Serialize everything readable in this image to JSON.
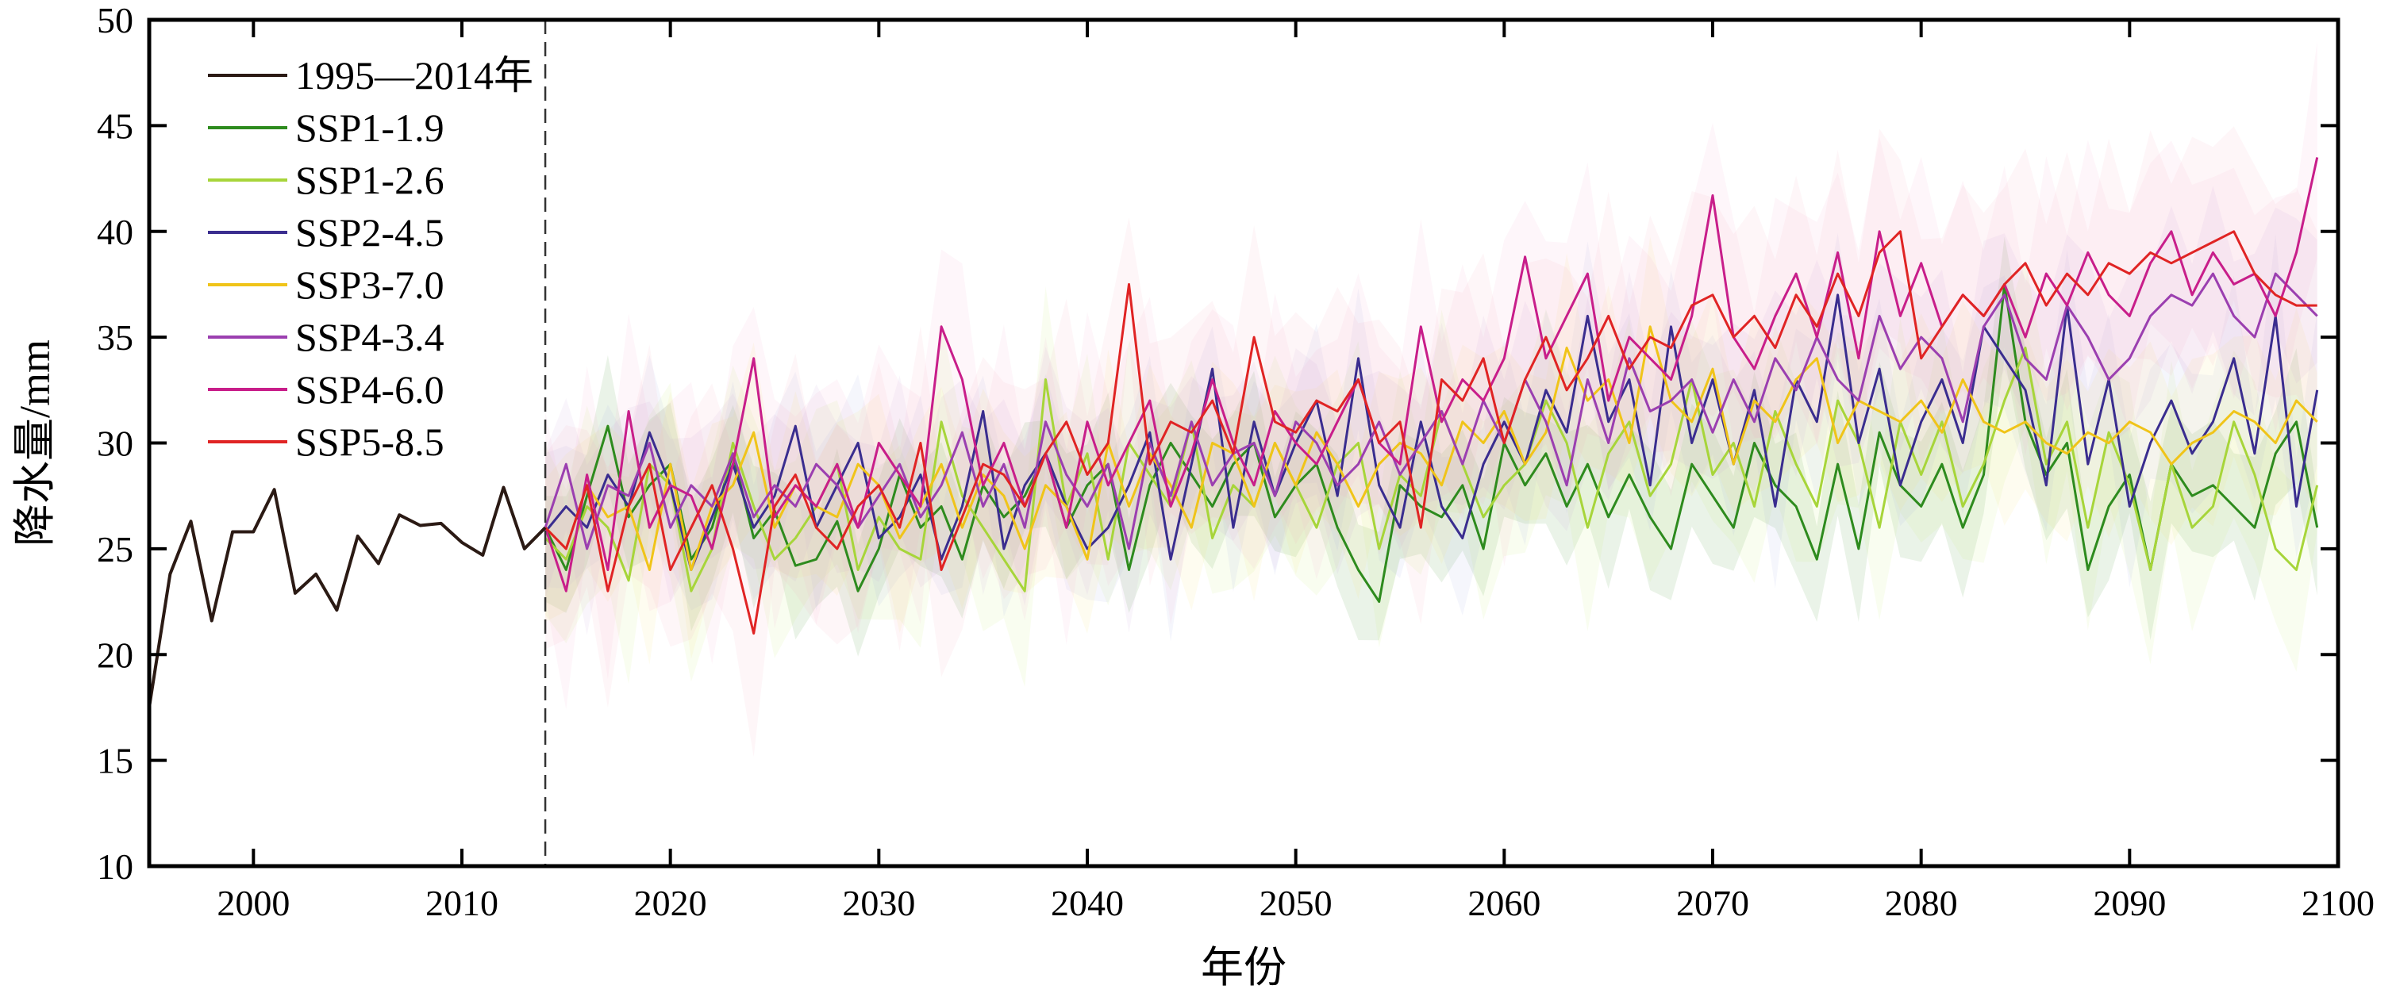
{
  "chart_data": {
    "type": "line",
    "title": "",
    "xlabel": "年份",
    "ylabel": "降水量/mm",
    "xlim": [
      1995,
      2100
    ],
    "ylim": [
      10,
      50
    ],
    "x_ticks": [
      2000,
      2010,
      2020,
      2030,
      2040,
      2050,
      2060,
      2070,
      2080,
      2090,
      2100
    ],
    "y_ticks": [
      10,
      15,
      20,
      25,
      30,
      35,
      40,
      45,
      50
    ],
    "grid": false,
    "legend_position": "top-left",
    "divider_x": 2014,
    "historical": {
      "name": "1995—2014年",
      "color": "#2b1a14",
      "x": [
        1995,
        1996,
        1997,
        1998,
        1999,
        2000,
        2001,
        2002,
        2003,
        2004,
        2005,
        2006,
        2007,
        2008,
        2009,
        2010,
        2011,
        2012,
        2013,
        2014
      ],
      "values": [
        17.5,
        23.8,
        26.3,
        21.6,
        25.8,
        25.8,
        27.8,
        22.9,
        23.8,
        22.1,
        25.6,
        24.3,
        26.6,
        26.1,
        26.2,
        25.3,
        24.7,
        27.9,
        25.0,
        26.0
      ]
    },
    "series": [
      {
        "name": "SSP1-1.9",
        "color": "#2e8b1e",
        "band_color": "#2e8b1e",
        "values": [
          26.0,
          24.0,
          27.5,
          30.8,
          26.5,
          28.0,
          29.0,
          24.5,
          26.0,
          29.5,
          25.5,
          26.8,
          24.2,
          24.5,
          26.3,
          23.0,
          25.0,
          28.5,
          26.0,
          27.0,
          24.5,
          28.0,
          26.5,
          27.5,
          29.5,
          26.0,
          28.0,
          29.0,
          24.0,
          28.0,
          30.0,
          28.5,
          27.0,
          29.0,
          30.0,
          26.5,
          28.0,
          29.0,
          26.0,
          24.0,
          22.5,
          28.0,
          27.0,
          26.5,
          28.0,
          25.0,
          30.0,
          28.0,
          29.5,
          27.0,
          29.0,
          26.5,
          28.5,
          26.5,
          25.0,
          29.0,
          27.5,
          26.0,
          30.0,
          28.0,
          27.0,
          24.5,
          29.0,
          25.0,
          30.5,
          28.0,
          27.0,
          29.0,
          26.0,
          28.5,
          37.5,
          31.0,
          28.5,
          30.0,
          24.0,
          27.0,
          28.5,
          24.0,
          29.0,
          27.5,
          28.0,
          27.0,
          26.0,
          29.5,
          31.0,
          26.0
        ]
      },
      {
        "name": "SSP1-2.6",
        "color": "#a7d53a",
        "band_color": "#c8e870",
        "values": [
          25.5,
          24.5,
          27.0,
          26.0,
          23.5,
          29.0,
          28.0,
          23.0,
          25.0,
          30.0,
          27.0,
          24.5,
          25.5,
          27.0,
          29.0,
          24.0,
          26.5,
          25.0,
          24.5,
          31.0,
          27.5,
          26.0,
          24.5,
          23.0,
          33.0,
          27.0,
          29.5,
          24.5,
          30.0,
          28.5,
          27.0,
          31.0,
          25.5,
          28.0,
          27.0,
          30.0,
          28.0,
          26.0,
          29.0,
          30.0,
          25.0,
          28.5,
          27.5,
          31.5,
          29.0,
          26.5,
          28.0,
          29.0,
          32.0,
          30.0,
          26.0,
          29.5,
          31.0,
          27.5,
          29.0,
          33.0,
          28.5,
          30.0,
          27.0,
          31.5,
          29.0,
          27.0,
          32.0,
          30.0,
          26.0,
          31.0,
          28.5,
          31.0,
          27.0,
          29.0,
          32.0,
          34.5,
          29.0,
          31.0,
          26.0,
          30.5,
          28.0,
          24.0,
          29.0,
          26.0,
          27.0,
          31.0,
          28.5,
          25.0,
          24.0,
          28.0
        ]
      },
      {
        "name": "SSP2-4.5",
        "color": "#3a2d8f",
        "band_color": "#9aa8e0",
        "values": [
          25.8,
          27.0,
          26.0,
          28.5,
          27.0,
          30.5,
          28.0,
          24.0,
          26.5,
          29.0,
          26.0,
          27.5,
          30.8,
          26.0,
          28.0,
          30.0,
          25.5,
          26.5,
          28.5,
          24.5,
          27.0,
          31.5,
          25.0,
          28.0,
          29.5,
          27.0,
          25.0,
          26.0,
          28.0,
          30.5,
          24.5,
          29.0,
          33.5,
          26.0,
          31.0,
          27.5,
          30.0,
          32.0,
          27.5,
          34.0,
          28.0,
          26.0,
          31.0,
          27.0,
          25.5,
          29.0,
          31.0,
          29.0,
          32.5,
          30.5,
          36.0,
          31.0,
          33.0,
          28.0,
          35.5,
          30.0,
          33.0,
          29.0,
          32.5,
          27.0,
          33.0,
          31.0,
          37.0,
          30.0,
          33.5,
          28.0,
          31.0,
          33.0,
          30.0,
          35.5,
          34.0,
          32.5,
          28.0,
          36.5,
          29.0,
          33.0,
          27.0,
          30.0,
          32.0,
          29.5,
          31.0,
          34.0,
          29.5,
          36.0,
          27.0,
          32.5
        ]
      },
      {
        "name": "SSP3-7.0",
        "color": "#f0c419",
        "band_color": "#f5e06a",
        "values": [
          26.0,
          25.0,
          28.0,
          26.5,
          27.0,
          24.0,
          29.0,
          24.0,
          27.0,
          28.0,
          30.5,
          26.0,
          28.0,
          27.0,
          26.5,
          29.0,
          28.0,
          25.5,
          27.0,
          29.0,
          26.0,
          28.5,
          27.5,
          25.0,
          28.0,
          27.0,
          24.5,
          30.0,
          27.0,
          29.5,
          28.0,
          26.0,
          30.0,
          29.5,
          27.0,
          30.0,
          28.0,
          30.5,
          29.0,
          27.0,
          29.0,
          30.0,
          29.5,
          28.0,
          31.0,
          30.0,
          31.5,
          29.0,
          30.5,
          34.5,
          32.0,
          33.0,
          30.0,
          35.5,
          32.0,
          31.0,
          33.5,
          29.0,
          32.0,
          31.0,
          33.0,
          34.0,
          30.0,
          32.0,
          31.5,
          31.0,
          32.0,
          30.5,
          33.0,
          31.0,
          30.5,
          31.0,
          30.0,
          29.5,
          30.5,
          30.0,
          31.0,
          30.5,
          29.0,
          30.0,
          30.5,
          31.5,
          31.0,
          30.0,
          32.0,
          31.0
        ]
      },
      {
        "name": "SSP4-3.4",
        "color": "#9b3fb0",
        "band_color": "#c89ad8",
        "values": [
          26.0,
          29.0,
          25.0,
          28.0,
          27.5,
          30.0,
          26.0,
          28.0,
          27.0,
          29.5,
          26.5,
          28.0,
          27.0,
          29.0,
          28.0,
          26.0,
          27.5,
          29.0,
          26.5,
          28.0,
          30.5,
          27.0,
          29.0,
          26.0,
          31.0,
          28.5,
          27.0,
          29.0,
          25.0,
          30.0,
          27.5,
          31.0,
          28.0,
          29.5,
          30.0,
          27.5,
          31.0,
          30.0,
          28.0,
          29.0,
          31.0,
          28.5,
          30.0,
          31.5,
          29.0,
          32.0,
          30.0,
          33.0,
          31.0,
          28.0,
          33.0,
          30.0,
          34.0,
          31.5,
          32.0,
          33.0,
          30.5,
          33.0,
          31.0,
          34.0,
          32.5,
          35.0,
          33.0,
          32.0,
          36.0,
          33.5,
          35.0,
          34.0,
          31.0,
          35.5,
          37.0,
          34.0,
          33.0,
          36.5,
          35.0,
          33.0,
          34.0,
          36.0,
          37.0,
          36.5,
          38.0,
          36.0,
          35.0,
          38.0,
          37.0,
          36.0
        ]
      },
      {
        "name": "SSP4-6.0",
        "color": "#c81e8a",
        "band_color": "#f2a3cf",
        "values": [
          26.0,
          23.0,
          28.5,
          24.0,
          31.5,
          26.0,
          28.0,
          27.5,
          25.0,
          29.0,
          34.0,
          26.5,
          28.0,
          27.0,
          29.0,
          26.0,
          30.0,
          28.5,
          27.0,
          35.5,
          33.0,
          28.0,
          30.0,
          27.0,
          29.5,
          26.0,
          31.0,
          28.0,
          30.0,
          32.0,
          27.0,
          29.5,
          33.0,
          30.0,
          28.0,
          31.5,
          30.0,
          29.0,
          31.0,
          33.0,
          30.0,
          29.0,
          35.5,
          31.0,
          33.0,
          32.0,
          34.0,
          38.8,
          34.0,
          36.0,
          38.0,
          32.0,
          35.0,
          34.0,
          33.0,
          36.0,
          41.7,
          35.0,
          33.5,
          36.0,
          38.0,
          35.0,
          39.0,
          34.0,
          40.0,
          36.0,
          38.5,
          35.5,
          37.0,
          36.0,
          37.5,
          35.0,
          38.0,
          36.5,
          39.0,
          37.0,
          36.0,
          38.5,
          40.0,
          37.0,
          39.0,
          37.5,
          38.0,
          36.0,
          39.0,
          43.5
        ]
      },
      {
        "name": "SSP5-8.5",
        "color": "#e02424",
        "band_color": "#f5a9b6",
        "values": [
          26.0,
          25.0,
          28.0,
          23.0,
          27.0,
          29.0,
          24.0,
          26.0,
          28.0,
          25.0,
          21.0,
          27.0,
          28.5,
          26.0,
          25.0,
          27.0,
          28.0,
          26.0,
          30.0,
          24.0,
          26.5,
          29.0,
          28.5,
          27.0,
          29.5,
          31.0,
          28.5,
          30.0,
          37.5,
          29.0,
          31.0,
          30.5,
          32.0,
          29.5,
          35.0,
          31.0,
          30.5,
          32.0,
          31.5,
          33.0,
          30.0,
          31.0,
          26.0,
          33.0,
          32.0,
          34.0,
          30.0,
          33.0,
          35.0,
          32.5,
          34.0,
          36.0,
          33.5,
          35.0,
          34.5,
          36.5,
          37.0,
          35.0,
          36.0,
          34.5,
          37.0,
          35.5,
          38.0,
          36.0,
          39.0,
          40.0,
          34.0,
          35.5,
          37.0,
          36.0,
          37.5,
          38.5,
          36.5,
          38.0,
          37.0,
          38.5,
          38.0,
          39.0,
          38.5,
          39.0,
          39.5,
          40.0,
          38.0,
          37.0,
          36.5,
          36.5
        ]
      }
    ]
  }
}
